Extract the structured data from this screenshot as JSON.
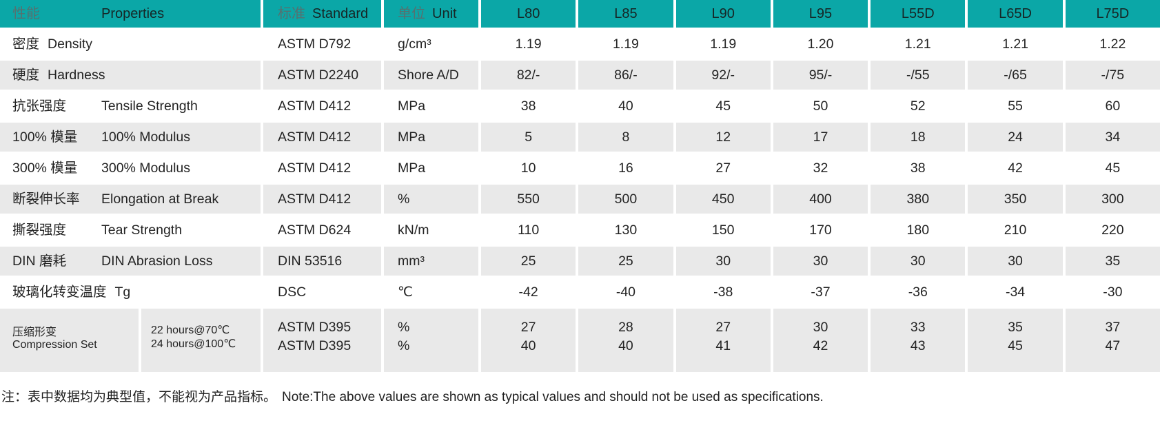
{
  "theme": {
    "teal": "#0BA7A7",
    "row_gray": "#E9E9E9",
    "header_zh_color": "#56706F",
    "text_color": "#232323"
  },
  "table": {
    "header": {
      "properties_zh": "性能",
      "properties_en": "Properties",
      "standard_zh": "标准",
      "standard_en": "Standard",
      "unit_zh": "单位",
      "unit_en": "Unit",
      "grades": [
        "L80",
        "L85",
        "L90",
        "L95",
        "L55D",
        "L65D",
        "L75D"
      ]
    },
    "rows": [
      {
        "zh": "密度",
        "en": "Density",
        "standard": "ASTM D792",
        "unit": "g/cm³",
        "values": [
          "1.19",
          "1.19",
          "1.19",
          "1.20",
          "1.21",
          "1.21",
          "1.22"
        ]
      },
      {
        "zh": "硬度",
        "en": "Hardness",
        "standard": "ASTM D2240",
        "unit": "Shore A/D",
        "values": [
          "82/-",
          "86/-",
          "92/-",
          "95/-",
          "-/55",
          "-/65",
          "-/75"
        ]
      },
      {
        "zh": "抗张强度",
        "en": "Tensile Strength",
        "standard": "ASTM D412",
        "unit": "MPa",
        "values": [
          "38",
          "40",
          "45",
          "50",
          "52",
          "55",
          "60"
        ]
      },
      {
        "zh": "100% 模量",
        "en": "100% Modulus",
        "standard": "ASTM D412",
        "unit": "MPa",
        "values": [
          "5",
          "8",
          "12",
          "17",
          "18",
          "24",
          "34"
        ]
      },
      {
        "zh": "300% 模量",
        "en": "300% Modulus",
        "standard": "ASTM D412",
        "unit": "MPa",
        "values": [
          "10",
          "16",
          "27",
          "32",
          "38",
          "42",
          "45"
        ]
      },
      {
        "zh": "断裂伸长率",
        "en": "Elongation at Break",
        "standard": "ASTM D412",
        "unit": "%",
        "values": [
          "550",
          "500",
          "450",
          "400",
          "380",
          "350",
          "300"
        ]
      },
      {
        "zh": "撕裂强度",
        "en": "Tear Strength",
        "standard": "ASTM D624",
        "unit": "kN/m",
        "values": [
          "110",
          "130",
          "150",
          "170",
          "180",
          "210",
          "220"
        ]
      },
      {
        "zh": "DIN 磨耗",
        "en": "DIN Abrasion Loss",
        "standard": "DIN 53516",
        "unit": "mm³",
        "values": [
          "25",
          "25",
          "30",
          "30",
          "30",
          "30",
          "35"
        ]
      },
      {
        "zh": "玻璃化转变温度",
        "en": "Tg",
        "standard": "DSC",
        "unit": "℃",
        "values": [
          "-42",
          "-40",
          "-38",
          "-37",
          "-36",
          "-34",
          "-30"
        ]
      }
    ],
    "compression_row": {
      "zh": "压缩形变",
      "en": "Compression Set",
      "condition1": "22 hours@70℃",
      "condition2": "24 hours@100℃",
      "standard1": "ASTM D395",
      "standard2": "ASTM D395",
      "unit1": "%",
      "unit2": "%",
      "values_line1": [
        "27",
        "28",
        "27",
        "30",
        "33",
        "35",
        "37"
      ],
      "values_line2": [
        "40",
        "40",
        "41",
        "42",
        "43",
        "45",
        "47"
      ]
    }
  },
  "note": {
    "zh": "注：表中数据均为典型值，不能视为产品指标。",
    "en": "Note:The above values are shown as typical values and should not be used as specifications."
  }
}
